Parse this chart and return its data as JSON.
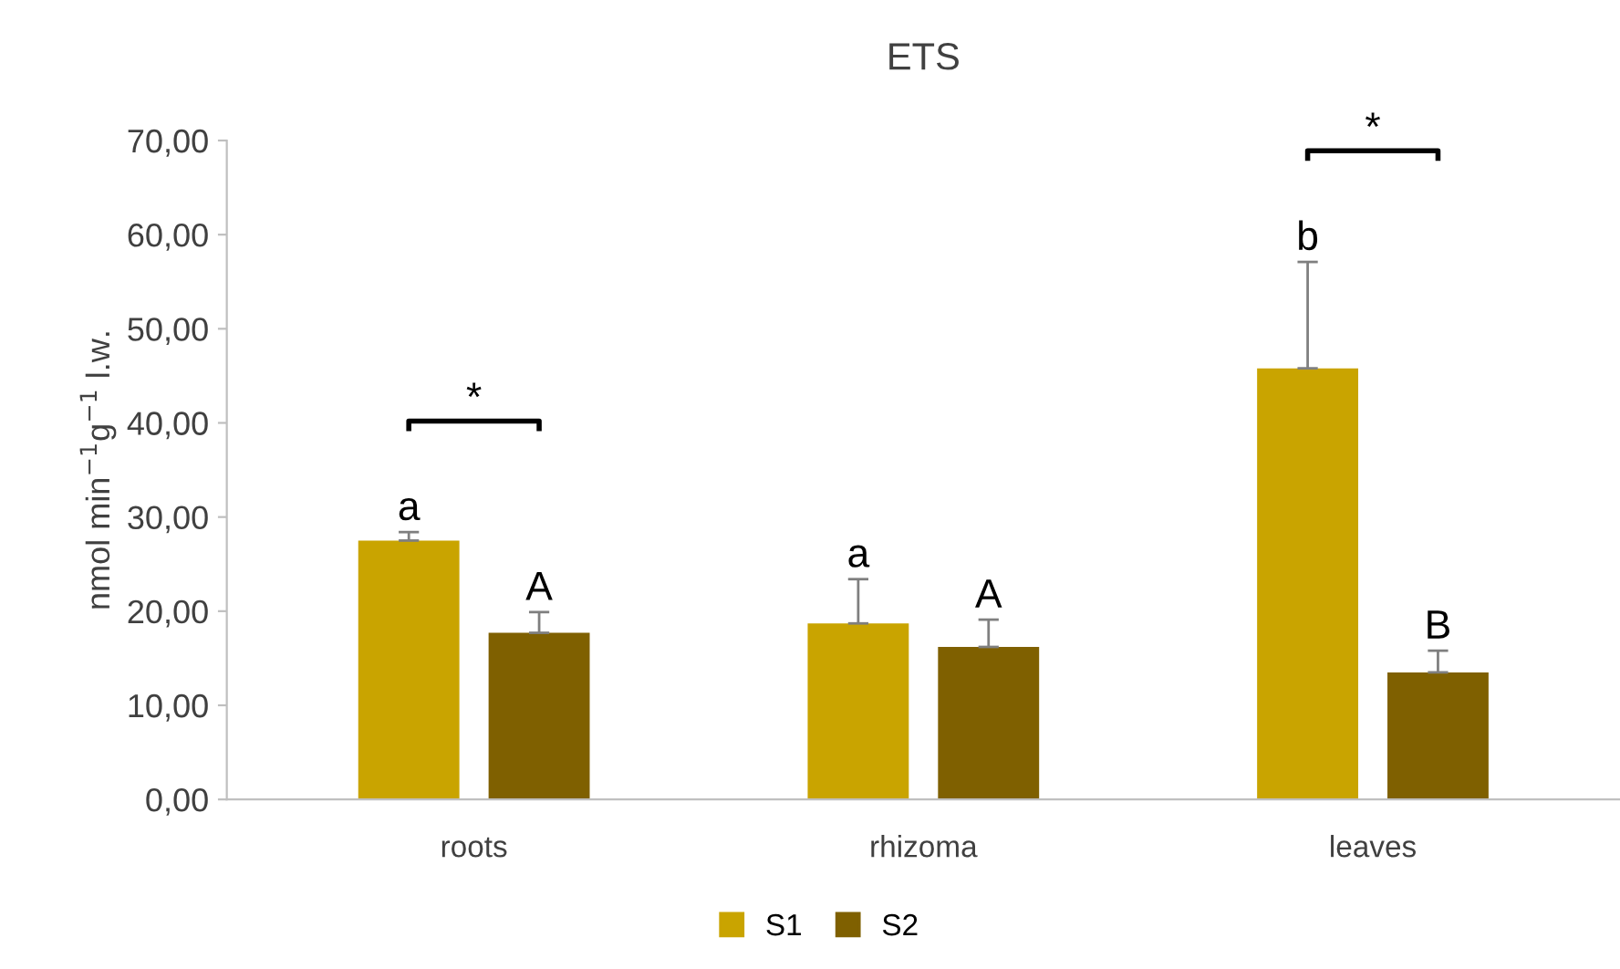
{
  "chart_data": {
    "type": "bar",
    "title": "ETS",
    "ylabel": "nmol min$^{−1}$g$^{−1}$ l.w.",
    "categories": [
      "roots",
      "rhizoma",
      "leaves"
    ],
    "series": [
      {
        "name": "S1",
        "color": "#c9a400",
        "values": [
          27.5,
          18.7,
          45.8
        ],
        "errors": [
          [
            27.5,
            28.4
          ],
          [
            18.7,
            23.4
          ],
          [
            45.8,
            57.1
          ]
        ],
        "value_labels": [
          "a",
          "a",
          "b"
        ]
      },
      {
        "name": "S2",
        "color": "#7f6000",
        "values": [
          17.7,
          16.2,
          13.5
        ],
        "errors": [
          [
            17.7,
            19.9
          ],
          [
            16.2,
            19.1
          ],
          [
            13.5,
            15.8
          ]
        ],
        "value_labels": [
          "A",
          "A",
          "B"
        ]
      }
    ],
    "annotations": [
      "*",
      "*"
    ],
    "ylim": [
      0,
      70
    ],
    "yticks": [
      {
        "value": 0,
        "label": "0,00"
      },
      {
        "value": 10,
        "label": "10,00"
      },
      {
        "value": 20,
        "label": "20,00"
      },
      {
        "value": 30,
        "label": "30,00"
      },
      {
        "value": 40,
        "label": "40,00"
      },
      {
        "value": 50,
        "label": "50,00"
      },
      {
        "value": 60,
        "label": "60,00"
      },
      {
        "value": 70,
        "label": "70,00"
      }
    ],
    "grid": false,
    "legend": "bottom"
  }
}
